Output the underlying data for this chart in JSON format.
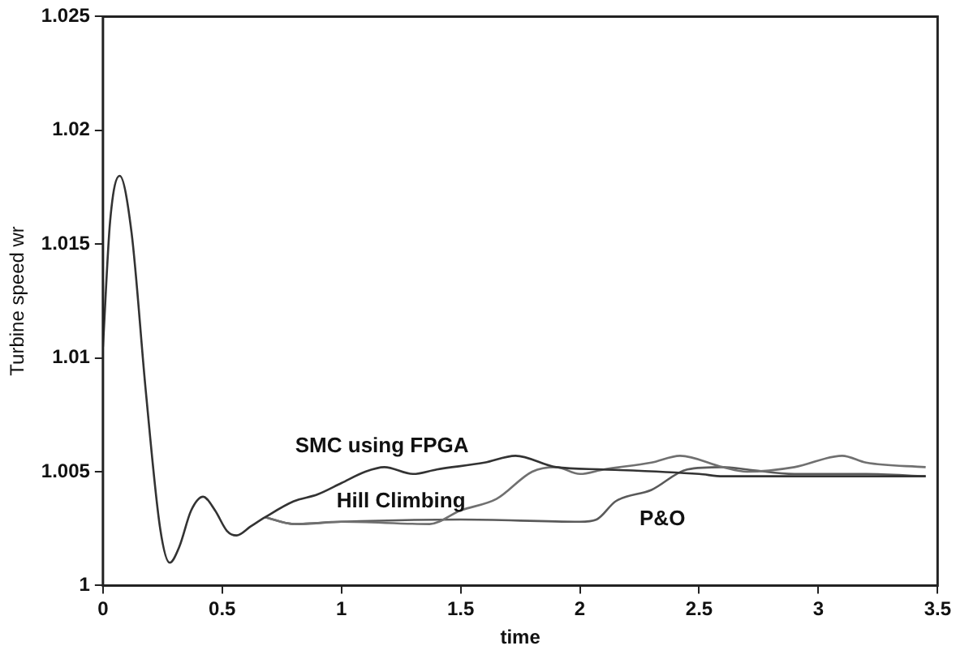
{
  "chart_data": {
    "type": "line",
    "xlabel": "time",
    "ylabel": "Turbine speed wr",
    "xlim": [
      0,
      3.5
    ],
    "xticks": [
      0,
      0.5,
      1,
      1.5,
      2,
      2.5,
      3,
      3.5
    ],
    "ylim": [
      1,
      1.025
    ],
    "yticks": [
      1,
      1.005,
      1.01,
      1.015,
      1.02,
      1.025
    ],
    "grid": false,
    "legend": false,
    "marker": "none",
    "line_style": "solid",
    "series": [
      {
        "name": "SMC using FPGA",
        "color": "#333333",
        "x": [
          0,
          0.03,
          0.07,
          0.12,
          0.18,
          0.24,
          0.28,
          0.32,
          0.37,
          0.42,
          0.47,
          0.52,
          0.56,
          0.62,
          0.68,
          0.8,
          0.9,
          1.0,
          1.1,
          1.18,
          1.3,
          1.4,
          1.6,
          1.73,
          1.9,
          2.1,
          2.5,
          2.6,
          3.4,
          3.45
        ],
        "values": [
          1.0105,
          1.016,
          1.018,
          1.0155,
          1.0085,
          1.0025,
          1.001,
          1.0017,
          1.0033,
          1.0039,
          1.0033,
          1.0024,
          1.0022,
          1.0026,
          1.003,
          1.0037,
          1.004,
          1.0045,
          1.005,
          1.0052,
          1.0049,
          1.0051,
          1.0054,
          1.0057,
          1.0052,
          1.0051,
          1.0049,
          1.0048,
          1.0048,
          1.0048
        ]
      },
      {
        "name": "Hill Climbing",
        "color": "#707070",
        "x": [
          0.68,
          0.8,
          1.0,
          1.37,
          1.5,
          1.65,
          1.8,
          1.9,
          2.0,
          2.1,
          2.3,
          2.42,
          2.6,
          2.7,
          2.9,
          3.1,
          3.2,
          3.45
        ],
        "values": [
          1.003,
          1.0027,
          1.0028,
          1.0027,
          1.0033,
          1.0038,
          1.005,
          1.0052,
          1.0049,
          1.0051,
          1.0054,
          1.0057,
          1.0052,
          1.005,
          1.0052,
          1.0057,
          1.0054,
          1.0052
        ]
      },
      {
        "name": "P&O",
        "color": "#5a5a5a",
        "x": [
          0.68,
          0.8,
          1.0,
          1.5,
          2.0,
          2.07,
          2.15,
          2.3,
          2.45,
          2.6,
          2.7,
          2.9,
          3.2,
          3.45
        ],
        "values": [
          1.003,
          1.0027,
          1.0028,
          1.0029,
          1.0028,
          1.0029,
          1.0037,
          1.0042,
          1.0051,
          1.0052,
          1.0051,
          1.0049,
          1.0049,
          1.0048
        ]
      }
    ]
  }
}
